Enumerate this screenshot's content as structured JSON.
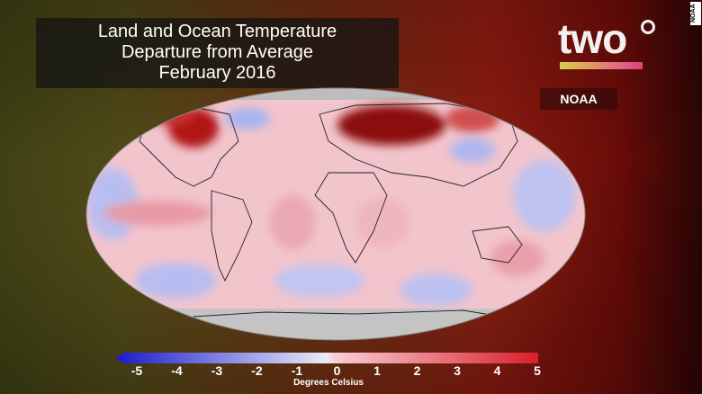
{
  "title": {
    "line1": "Land and Ocean Temperature",
    "line2": "Departure from Average",
    "line3": "February 2016"
  },
  "logo": {
    "text": "two",
    "symbol": "degree"
  },
  "credit": "NOAA",
  "side_credit": "NOAA",
  "legend": {
    "ticks": [
      "-5",
      "-4",
      "-3",
      "-2",
      "-1",
      "0",
      "1",
      "2",
      "3",
      "4",
      "5"
    ],
    "range": [
      -5,
      5
    ],
    "unit": "Degrees Celsius",
    "colors": {
      "cold": "#1a1acc",
      "neutral": "#f5f0f5",
      "warm": "#d8202a"
    }
  }
}
